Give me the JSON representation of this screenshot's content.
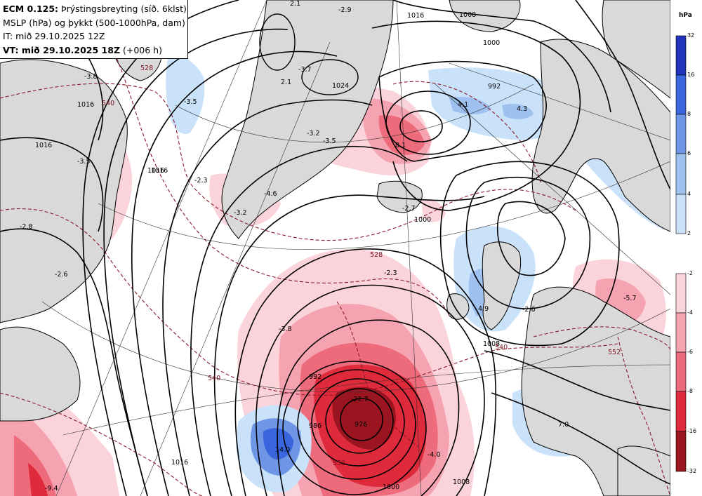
{
  "header": {
    "line1_bold": "ECM 0.125:",
    "line1_rest": " Þrýstingsbreyting (síð. 6klst)",
    "line2": "MSLP (hPa) og þykkt (500-1000hPa, dam)",
    "line3": "IT: mið 29.10.2025 12Z",
    "line4_bold": "VT: mið 29.10.2025 18Z",
    "line4_rest": " (+006 h)"
  },
  "legend": {
    "unit": "hPa",
    "positive_ticks": [
      "32",
      "16",
      "8",
      "6",
      "4",
      "2"
    ],
    "negative_ticks": [
      "-2",
      "-4",
      "-6",
      "-8",
      "-16",
      "-32"
    ],
    "positive_colors": [
      "#2233bb",
      "#3a66dd",
      "#6f95e6",
      "#9fc1f0",
      "#c9e2fa"
    ],
    "negative_colors": [
      "#fbd3da",
      "#f5a3b0",
      "#ee6b7c",
      "#df2a3c",
      "#9a1520"
    ]
  },
  "isobar_labels": [
    "2.1",
    "-2.9",
    "1016",
    "1008",
    "1000",
    "992",
    "-3.5",
    "1016",
    "1024",
    "1016",
    "-3.5",
    "1024",
    "1016",
    "992",
    "1000",
    "-2.3",
    "-4.6",
    "-3.2",
    "-2.8",
    "-2.6",
    "-2.3",
    "-3.8",
    "-2.7",
    "-2.6",
    "4.9",
    "-5.7",
    "1008",
    "992",
    "976",
    "986",
    "1008",
    "1000",
    "-4.0",
    "14.0",
    "-9.4",
    "1016",
    "4.1",
    "4.3",
    "8.1",
    "7.0",
    "-22.7"
  ],
  "thickness_labels": [
    "528",
    "540",
    "552",
    "540",
    "552",
    "528",
    "540"
  ],
  "map_labels": [
    {
      "id": "l1",
      "text": "2.1"
    },
    {
      "id": "l2",
      "text": "-2.9"
    },
    {
      "id": "l3",
      "text": "-3.8"
    },
    {
      "id": "l4",
      "text": "1016"
    },
    {
      "id": "l5",
      "text": "1024"
    },
    {
      "id": "l6",
      "text": "-3.5"
    },
    {
      "id": "l7",
      "text": "1016"
    },
    {
      "id": "l8",
      "text": "-3.5"
    },
    {
      "id": "l9",
      "text": "1016"
    },
    {
      "id": "l10",
      "text": "-2.3"
    },
    {
      "id": "l11",
      "text": "-4.6"
    },
    {
      "id": "l12",
      "text": "-3.2"
    },
    {
      "id": "l13",
      "text": "-2.8"
    },
    {
      "id": "l14",
      "text": "-2.6"
    },
    {
      "id": "l15",
      "text": "2.1"
    },
    {
      "id": "l16",
      "text": "-3.7"
    },
    {
      "id": "l17",
      "text": "-3.2"
    },
    {
      "id": "l18",
      "text": "-3.5"
    },
    {
      "id": "l19",
      "text": "1008"
    },
    {
      "id": "l20",
      "text": "1000"
    },
    {
      "id": "l21",
      "text": "992"
    },
    {
      "id": "l22",
      "text": "4.1"
    },
    {
      "id": "l23",
      "text": "4.3"
    },
    {
      "id": "l24",
      "text": "8.1"
    },
    {
      "id": "l25",
      "text": "-2.7"
    },
    {
      "id": "l26",
      "text": "1000"
    },
    {
      "id": "l27",
      "text": "-2.3"
    },
    {
      "id": "l28",
      "text": "4.9"
    },
    {
      "id": "l29",
      "text": "-2.6"
    },
    {
      "id": "l30",
      "text": "-5.7"
    },
    {
      "id": "l31",
      "text": "1008"
    },
    {
      "id": "l32",
      "text": "992"
    },
    {
      "id": "l33",
      "text": "-22.7"
    },
    {
      "id": "l34",
      "text": "976"
    },
    {
      "id": "l35",
      "text": "986"
    },
    {
      "id": "l36",
      "text": "14.0"
    },
    {
      "id": "l37",
      "text": "-4.0"
    },
    {
      "id": "l38",
      "text": "1000"
    },
    {
      "id": "l39",
      "text": "1008"
    },
    {
      "id": "l40",
      "text": "7.0"
    },
    {
      "id": "l41",
      "text": "-9.4"
    },
    {
      "id": "l42",
      "text": "1016"
    },
    {
      "id": "l43",
      "text": "1016"
    },
    {
      "id": "l44",
      "text": "-3.8"
    },
    {
      "id": "l45",
      "text": "1016"
    }
  ],
  "thickness_map_labels": [
    {
      "id": "t1",
      "text": "528"
    },
    {
      "id": "t2",
      "text": "540"
    },
    {
      "id": "t3",
      "text": "528"
    },
    {
      "id": "t4",
      "text": "540"
    },
    {
      "id": "t5",
      "text": "552"
    },
    {
      "id": "t6",
      "text": "552"
    },
    {
      "id": "t7",
      "text": "540"
    }
  ]
}
